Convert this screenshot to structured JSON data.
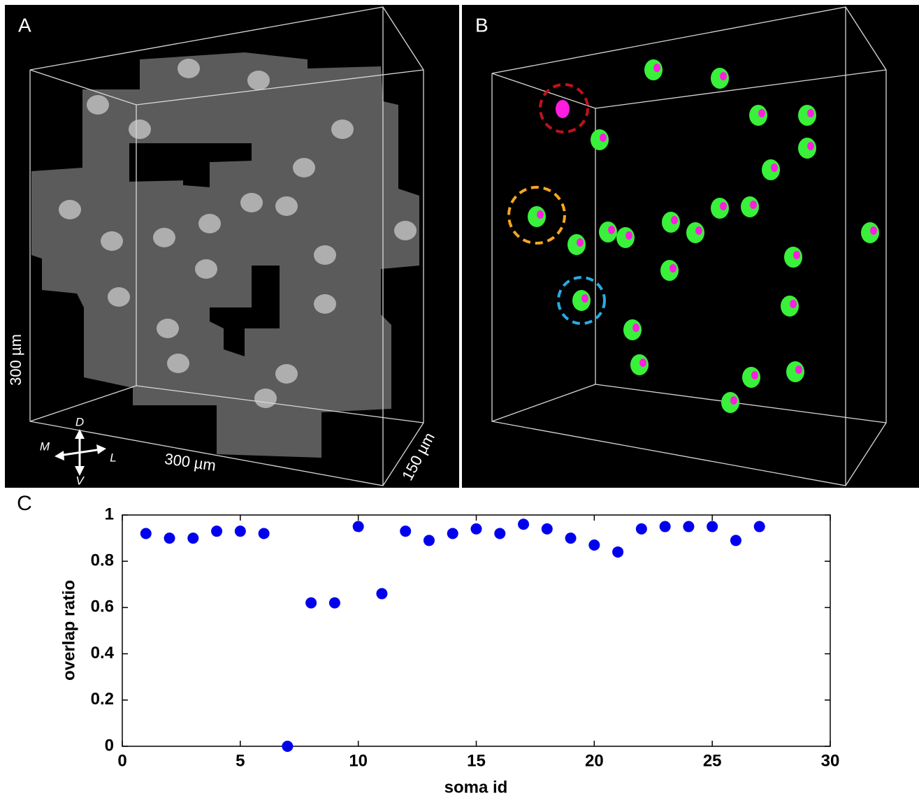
{
  "panels": {
    "a": {
      "label": "A",
      "height_label": "300 µm",
      "width_label": "300 µm",
      "depth_label": "150 µm",
      "compass": {
        "dorsal": "D",
        "ventral": "V",
        "medial": "M",
        "lateral": "L"
      }
    },
    "b": {
      "label": "B"
    }
  },
  "chart_data": {
    "type": "scatter",
    "panel_label": "C",
    "xlabel": "soma id",
    "ylabel": "overlap ratio",
    "x": [
      1,
      2,
      3,
      4,
      5,
      6,
      7,
      8,
      9,
      10,
      11,
      12,
      13,
      14,
      15,
      16,
      17,
      18,
      19,
      20,
      21,
      22,
      23,
      24,
      25,
      26,
      27
    ],
    "series": [
      {
        "color": "#0000ee",
        "values": [
          0.92,
          0.9,
          0.9,
          0.93,
          0.93,
          0.92,
          0,
          0.62,
          0.62,
          0.95,
          0.66,
          0.93,
          0.89,
          0.92,
          0.94,
          0.92,
          0.96,
          0.94,
          0.9,
          0.87,
          0.84,
          0.94,
          0.95,
          0.95,
          0.95,
          0.89,
          0.95
        ]
      }
    ],
    "xlim": [
      0,
      30
    ],
    "xticks": [
      0,
      5,
      10,
      15,
      20,
      25,
      30
    ],
    "ylim": [
      0,
      1
    ],
    "yticks": [
      0,
      0.2,
      0.4,
      0.6,
      0.8,
      1
    ]
  }
}
